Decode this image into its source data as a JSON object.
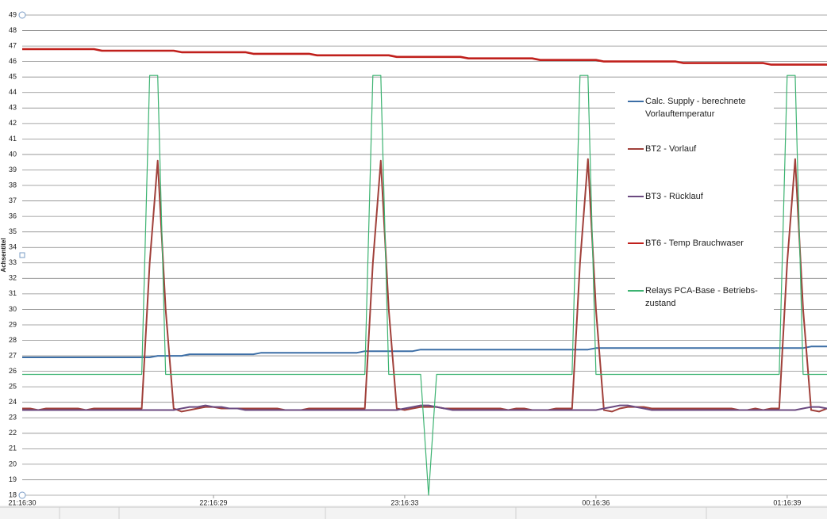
{
  "chart_data": {
    "type": "line",
    "y_label": "Achsentitel",
    "ylim": [
      18,
      49
    ],
    "yticks": [
      18,
      19,
      20,
      21,
      22,
      23,
      24,
      25,
      26,
      27,
      28,
      29,
      30,
      31,
      32,
      33,
      34,
      35,
      36,
      37,
      38,
      39,
      40,
      41,
      42,
      43,
      44,
      45,
      46,
      47,
      48,
      49
    ],
    "grid": true,
    "categories": [
      "21:16:30",
      null,
      null,
      null,
      null,
      null,
      null,
      null,
      null,
      null,
      null,
      null,
      null,
      null,
      null,
      null,
      null,
      null,
      null,
      null,
      null,
      null,
      null,
      null,
      "22:16:29",
      null,
      null,
      null,
      null,
      null,
      null,
      null,
      null,
      null,
      null,
      null,
      null,
      null,
      null,
      null,
      null,
      null,
      null,
      null,
      null,
      null,
      null,
      null,
      "23:16:33",
      null,
      null,
      null,
      null,
      null,
      null,
      null,
      null,
      null,
      null,
      null,
      null,
      null,
      null,
      null,
      null,
      null,
      null,
      null,
      null,
      null,
      null,
      null,
      "00:16:36",
      null,
      null,
      null,
      null,
      null,
      null,
      null,
      null,
      null,
      null,
      null,
      null,
      null,
      null,
      null,
      null,
      null,
      null,
      null,
      null,
      null,
      null,
      null,
      "01:16:39",
      null,
      null,
      null,
      null,
      null
    ],
    "series": [
      {
        "name": "Calc. Supply - berechnete Vorlauftemperatur",
        "color": "#3c6ea6",
        "values": [
          26.9,
          26.9,
          26.9,
          26.9,
          26.9,
          26.9,
          26.9,
          26.9,
          26.9,
          26.9,
          26.9,
          26.9,
          26.9,
          26.9,
          26.9,
          26.9,
          26.9,
          27.0,
          27.0,
          27.0,
          27.0,
          27.1,
          27.1,
          27.1,
          27.1,
          27.1,
          27.1,
          27.1,
          27.1,
          27.1,
          27.2,
          27.2,
          27.2,
          27.2,
          27.2,
          27.2,
          27.2,
          27.2,
          27.2,
          27.2,
          27.2,
          27.2,
          27.2,
          27.3,
          27.3,
          27.3,
          27.3,
          27.3,
          27.3,
          27.3,
          27.4,
          27.4,
          27.4,
          27.4,
          27.4,
          27.4,
          27.4,
          27.4,
          27.4,
          27.4,
          27.4,
          27.4,
          27.4,
          27.4,
          27.4,
          27.4,
          27.4,
          27.4,
          27.4,
          27.4,
          27.4,
          27.4,
          27.5,
          27.5,
          27.5,
          27.5,
          27.5,
          27.5,
          27.5,
          27.5,
          27.5,
          27.5,
          27.5,
          27.5,
          27.5,
          27.5,
          27.5,
          27.5,
          27.5,
          27.5,
          27.5,
          27.5,
          27.5,
          27.5,
          27.5,
          27.5,
          27.5,
          27.5,
          27.5,
          27.6,
          27.6,
          27.6
        ]
      },
      {
        "name": "BT2 - Vorlauf",
        "color": "#a0403a",
        "values": [
          23.6,
          23.6,
          23.5,
          23.6,
          23.6,
          23.6,
          23.6,
          23.6,
          23.5,
          23.6,
          23.6,
          23.6,
          23.6,
          23.6,
          23.6,
          23.6,
          33,
          39.6,
          30,
          23.6,
          23.4,
          23.5,
          23.6,
          23.7,
          23.7,
          23.6,
          23.6,
          23.6,
          23.6,
          23.6,
          23.6,
          23.6,
          23.6,
          23.5,
          23.5,
          23.5,
          23.6,
          23.6,
          23.6,
          23.6,
          23.6,
          23.6,
          23.6,
          23.6,
          33,
          39.6,
          30,
          23.6,
          23.5,
          23.6,
          23.7,
          23.7,
          23.7,
          23.6,
          23.6,
          23.6,
          23.6,
          23.6,
          23.6,
          23.6,
          23.6,
          23.5,
          23.6,
          23.6,
          23.5,
          23.5,
          23.5,
          23.6,
          23.6,
          23.6,
          33,
          39.7,
          30,
          23.5,
          23.4,
          23.6,
          23.7,
          23.7,
          23.7,
          23.6,
          23.6,
          23.6,
          23.6,
          23.6,
          23.6,
          23.6,
          23.6,
          23.6,
          23.6,
          23.6,
          23.5,
          23.5,
          23.6,
          23.5,
          23.6,
          23.6,
          33,
          39.7,
          30,
          23.5,
          23.4,
          23.6
        ]
      },
      {
        "name": "BT3 - Rücklauf",
        "color": "#6b4a80",
        "values": [
          23.5,
          23.5,
          23.5,
          23.5,
          23.5,
          23.5,
          23.5,
          23.5,
          23.5,
          23.5,
          23.5,
          23.5,
          23.5,
          23.5,
          23.5,
          23.5,
          23.5,
          23.5,
          23.5,
          23.5,
          23.6,
          23.7,
          23.7,
          23.8,
          23.7,
          23.7,
          23.6,
          23.6,
          23.5,
          23.5,
          23.5,
          23.5,
          23.5,
          23.5,
          23.5,
          23.5,
          23.5,
          23.5,
          23.5,
          23.5,
          23.5,
          23.5,
          23.5,
          23.5,
          23.5,
          23.5,
          23.5,
          23.5,
          23.6,
          23.7,
          23.8,
          23.8,
          23.7,
          23.6,
          23.5,
          23.5,
          23.5,
          23.5,
          23.5,
          23.5,
          23.5,
          23.5,
          23.5,
          23.5,
          23.5,
          23.5,
          23.5,
          23.5,
          23.5,
          23.5,
          23.5,
          23.5,
          23.5,
          23.6,
          23.7,
          23.8,
          23.8,
          23.7,
          23.6,
          23.5,
          23.5,
          23.5,
          23.5,
          23.5,
          23.5,
          23.5,
          23.5,
          23.5,
          23.5,
          23.5,
          23.5,
          23.5,
          23.5,
          23.5,
          23.5,
          23.5,
          23.5,
          23.5,
          23.6,
          23.7,
          23.7,
          23.6
        ]
      },
      {
        "name": "BT6 - Temp Brauchwaser",
        "color": "#c0201c",
        "values": [
          46.8,
          46.8,
          46.8,
          46.8,
          46.8,
          46.8,
          46.8,
          46.8,
          46.8,
          46.8,
          46.7,
          46.7,
          46.7,
          46.7,
          46.7,
          46.7,
          46.7,
          46.7,
          46.7,
          46.7,
          46.6,
          46.6,
          46.6,
          46.6,
          46.6,
          46.6,
          46.6,
          46.6,
          46.6,
          46.5,
          46.5,
          46.5,
          46.5,
          46.5,
          46.5,
          46.5,
          46.5,
          46.4,
          46.4,
          46.4,
          46.4,
          46.4,
          46.4,
          46.4,
          46.4,
          46.4,
          46.4,
          46.3,
          46.3,
          46.3,
          46.3,
          46.3,
          46.3,
          46.3,
          46.3,
          46.3,
          46.2,
          46.2,
          46.2,
          46.2,
          46.2,
          46.2,
          46.2,
          46.2,
          46.2,
          46.1,
          46.1,
          46.1,
          46.1,
          46.1,
          46.1,
          46.1,
          46.1,
          46.0,
          46.0,
          46.0,
          46.0,
          46.0,
          46.0,
          46.0,
          46.0,
          46.0,
          46.0,
          45.9,
          45.9,
          45.9,
          45.9,
          45.9,
          45.9,
          45.9,
          45.9,
          45.9,
          45.9,
          45.9,
          45.8,
          45.8,
          45.8,
          45.8,
          45.8,
          45.8,
          45.8,
          45.8
        ]
      },
      {
        "name": "Relays PCA-Base - Betriebs-zustand",
        "color": "#3cb371",
        "values": [
          25.8,
          25.8,
          25.8,
          25.8,
          25.8,
          25.8,
          25.8,
          25.8,
          25.8,
          25.8,
          25.8,
          25.8,
          25.8,
          25.8,
          25.8,
          25.8,
          45.1,
          45.1,
          25.8,
          25.8,
          25.8,
          25.8,
          25.8,
          25.8,
          25.8,
          25.8,
          25.8,
          25.8,
          25.8,
          25.8,
          25.8,
          25.8,
          25.8,
          25.8,
          25.8,
          25.8,
          25.8,
          25.8,
          25.8,
          25.8,
          25.8,
          25.8,
          25.8,
          25.8,
          45.1,
          45.1,
          25.8,
          25.8,
          25.8,
          25.8,
          25.8,
          18,
          25.8,
          25.8,
          25.8,
          25.8,
          25.8,
          25.8,
          25.8,
          25.8,
          25.8,
          25.8,
          25.8,
          25.8,
          25.8,
          25.8,
          25.8,
          25.8,
          25.8,
          25.8,
          45.1,
          45.1,
          25.8,
          25.8,
          25.8,
          25.8,
          25.8,
          25.8,
          25.8,
          25.8,
          25.8,
          25.8,
          25.8,
          25.8,
          25.8,
          25.8,
          25.8,
          25.8,
          25.8,
          25.8,
          25.8,
          25.8,
          25.8,
          25.8,
          25.8,
          25.8,
          45.1,
          45.1,
          25.8,
          25.8,
          25.8,
          25.8
        ]
      }
    ]
  }
}
